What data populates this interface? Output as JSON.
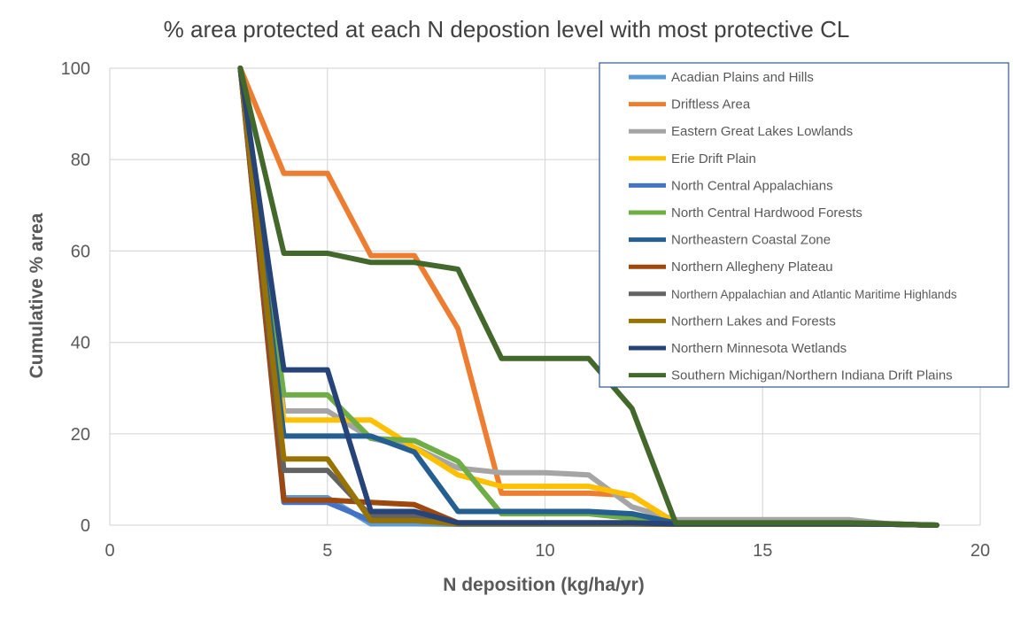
{
  "chart_data": {
    "type": "line",
    "title": "% area protected at each N depostion level with most protective CL",
    "xlabel": "N deposition (kg/ha/yr)",
    "ylabel": "Cumulative % area",
    "xlim": [
      0,
      20
    ],
    "ylim": [
      0,
      100
    ],
    "x_ticks": [
      "0",
      "5",
      "10",
      "15",
      "20"
    ],
    "y_ticks": [
      "0",
      "20",
      "40",
      "60",
      "80",
      "100"
    ],
    "grid": true,
    "legend_position": "top-right",
    "series": [
      {
        "name": "Acadian Plains and Hills",
        "color": "#5B9BD5",
        "x": [
          3,
          4,
          5,
          6,
          7,
          8,
          9,
          10,
          11,
          12,
          13,
          14,
          15,
          16,
          17,
          18,
          19
        ],
        "y": [
          100,
          6,
          6,
          0.3,
          0.3,
          0.2,
          0.2,
          0.2,
          0.2,
          0.2,
          0.2,
          0.2,
          0.2,
          0.2,
          0.2,
          0.2,
          0
        ]
      },
      {
        "name": "Driftless Area",
        "color": "#ED7D31",
        "x": [
          3,
          4,
          5,
          6,
          7,
          8,
          9,
          10,
          11,
          12,
          13,
          14,
          15,
          16,
          17,
          18,
          19
        ],
        "y": [
          100,
          77,
          77,
          59,
          59,
          43,
          7,
          7,
          7,
          6.5,
          0.5,
          0.5,
          0.5,
          0.5,
          0.5,
          0.3,
          0
        ]
      },
      {
        "name": "Eastern Great Lakes Lowlands",
        "color": "#A5A5A5",
        "x": [
          3,
          4,
          5,
          6,
          7,
          8,
          9,
          10,
          11,
          12,
          13,
          14,
          15,
          16,
          17,
          18,
          19
        ],
        "y": [
          100,
          25,
          25,
          19,
          17,
          12.5,
          11.5,
          11.5,
          11,
          4,
          1.2,
          1.2,
          1.2,
          1.2,
          1.2,
          0.2,
          0
        ]
      },
      {
        "name": "Erie Drift Plain",
        "color": "#FFC000",
        "x": [
          3,
          4,
          5,
          6,
          7,
          8,
          9,
          10,
          11,
          12,
          13,
          14,
          15,
          16,
          17,
          18,
          19
        ],
        "y": [
          100,
          23,
          23,
          23,
          17,
          11,
          8.5,
          8.5,
          8.5,
          6.5,
          0.5,
          0.5,
          0.5,
          0.5,
          0.5,
          0.2,
          0
        ]
      },
      {
        "name": "North Central Appalachians",
        "color": "#4472C4",
        "x": [
          3,
          4,
          5,
          6,
          7,
          8,
          9,
          10,
          11,
          12,
          13,
          14,
          15,
          16,
          17,
          18,
          19
        ],
        "y": [
          100,
          5,
          5,
          1,
          1,
          0.5,
          0.3,
          0.3,
          0.3,
          0.3,
          0.2,
          0.2,
          0.2,
          0.2,
          0.2,
          0.2,
          0
        ]
      },
      {
        "name": "North Central Hardwood Forests",
        "color": "#70AD47",
        "x": [
          3,
          4,
          5,
          6,
          7,
          8,
          9,
          10,
          11,
          12,
          13,
          14,
          15,
          16,
          17,
          18,
          19
        ],
        "y": [
          100,
          28.5,
          28.5,
          19,
          18.5,
          14,
          2.5,
          2.5,
          2.5,
          1.5,
          0.5,
          0.5,
          0.5,
          0.5,
          0.5,
          0.2,
          0
        ]
      },
      {
        "name": "Northeastern Coastal Zone",
        "color": "#255E91",
        "x": [
          3,
          4,
          5,
          6,
          7,
          8,
          9,
          10,
          11,
          12,
          13,
          14,
          15,
          16,
          17,
          18,
          19
        ],
        "y": [
          100,
          19.5,
          19.5,
          19.5,
          16,
          3,
          3,
          3,
          3,
          2.5,
          0.5,
          0.5,
          0.5,
          0.5,
          0.5,
          0.2,
          0
        ]
      },
      {
        "name": "Northern Allegheny Plateau",
        "color": "#9E480E",
        "x": [
          3,
          4,
          5,
          6,
          7,
          8,
          9,
          10,
          11,
          12,
          13,
          14,
          15,
          16,
          17,
          18,
          19
        ],
        "y": [
          100,
          5.5,
          5.5,
          5,
          4.5,
          0.5,
          0.5,
          0.5,
          0.5,
          0.5,
          0.3,
          0.3,
          0.3,
          0.3,
          0.3,
          0.2,
          0
        ]
      },
      {
        "name": "Northern Appalachian and Atlantic Maritime Highlands",
        "color": "#636363",
        "x": [
          3,
          4,
          5,
          6,
          7,
          8,
          9,
          10,
          11,
          12,
          13,
          14,
          15,
          16,
          17,
          18,
          19
        ],
        "y": [
          100,
          12,
          12,
          2,
          2,
          0.5,
          0.5,
          0.5,
          0.5,
          0.5,
          0.3,
          0.3,
          0.3,
          0.3,
          0.3,
          0.2,
          0
        ]
      },
      {
        "name": "Northern Lakes and Forests",
        "color": "#997300",
        "x": [
          3,
          4,
          5,
          6,
          7,
          8,
          9,
          10,
          11,
          12,
          13,
          14,
          15,
          16,
          17,
          18,
          19
        ],
        "y": [
          100,
          14.5,
          14.5,
          1,
          1,
          0.3,
          0.3,
          0.3,
          0.3,
          0.3,
          0.2,
          0.2,
          0.2,
          0.2,
          0.2,
          0.2,
          0
        ]
      },
      {
        "name": "Northern Minnesota Wetlands",
        "color": "#264478",
        "x": [
          3,
          4,
          5,
          6,
          7,
          8,
          9,
          10,
          11,
          12,
          13,
          14,
          15,
          16,
          17,
          18,
          19
        ],
        "y": [
          100,
          34,
          34,
          3,
          3,
          0.5,
          0.5,
          0.5,
          0.5,
          0.5,
          0.3,
          0.3,
          0.3,
          0.3,
          0.3,
          0.2,
          0
        ]
      },
      {
        "name": "Southern Michigan/Northern Indiana Drift Plains",
        "color": "#43682B",
        "x": [
          3,
          4,
          5,
          6,
          7,
          8,
          9,
          10,
          11,
          12,
          13,
          14,
          15,
          16,
          17,
          18,
          19
        ],
        "y": [
          100,
          59.5,
          59.5,
          57.5,
          57.5,
          56,
          36.5,
          36.5,
          36.5,
          25.5,
          0.5,
          0.5,
          0.5,
          0.5,
          0.5,
          0.3,
          0
        ]
      }
    ]
  }
}
